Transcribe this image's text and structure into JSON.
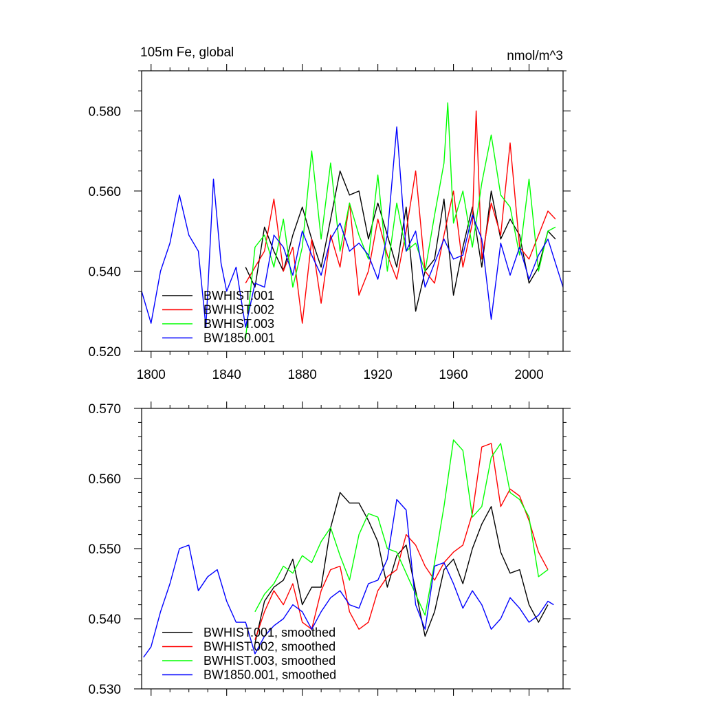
{
  "figure": {
    "top_title": "105m Fe, global",
    "units": "nmol/m^3"
  },
  "chart_data": [
    {
      "type": "line",
      "title": "105m Fe, global",
      "units_label": "nmol/m^3",
      "xlabel": "",
      "ylabel": "",
      "xlim": [
        1795,
        2018
      ],
      "ylim": [
        0.52,
        0.59
      ],
      "x_ticks": [
        1800,
        1840,
        1880,
        1920,
        1960,
        2000
      ],
      "x_tick_labels": [
        "1800",
        "1840",
        "1880",
        "1920",
        "1960",
        "2000"
      ],
      "y_ticks": [
        0.52,
        0.54,
        0.56,
        0.58
      ],
      "y_tick_labels": [
        "0.520",
        "0.540",
        "0.560",
        "0.580"
      ],
      "legend_position": "bottom-left",
      "series": [
        {
          "name": "BWHIST.001",
          "color": "#000000",
          "x": [
            1850,
            1855,
            1860,
            1865,
            1870,
            1875,
            1880,
            1885,
            1890,
            1895,
            1900,
            1905,
            1910,
            1915,
            1920,
            1925,
            1930,
            1935,
            1940,
            1945,
            1950,
            1955,
            1960,
            1965,
            1970,
            1975,
            1980,
            1985,
            1990,
            1995,
            2000,
            2005,
            2010,
            2014
          ],
          "values": [
            0.541,
            0.536,
            0.551,
            0.545,
            0.54,
            0.549,
            0.556,
            0.548,
            0.541,
            0.553,
            0.565,
            0.559,
            0.56,
            0.548,
            0.557,
            0.549,
            0.541,
            0.556,
            0.53,
            0.54,
            0.543,
            0.558,
            0.534,
            0.546,
            0.556,
            0.541,
            0.56,
            0.548,
            0.553,
            0.549,
            0.537,
            0.541,
            0.55,
            0.548
          ]
        },
        {
          "name": "BWHIST.002",
          "color": "#ff0000",
          "x": [
            1850,
            1855,
            1860,
            1865,
            1870,
            1875,
            1880,
            1885,
            1890,
            1895,
            1900,
            1905,
            1910,
            1915,
            1920,
            1925,
            1930,
            1935,
            1940,
            1945,
            1950,
            1955,
            1960,
            1965,
            1970,
            1972,
            1975,
            1980,
            1985,
            1990,
            1995,
            2000,
            2005,
            2010,
            2014
          ],
          "values": [
            0.537,
            0.541,
            0.545,
            0.558,
            0.54,
            0.546,
            0.527,
            0.548,
            0.532,
            0.549,
            0.541,
            0.557,
            0.534,
            0.54,
            0.553,
            0.544,
            0.538,
            0.55,
            0.565,
            0.54,
            0.537,
            0.549,
            0.56,
            0.541,
            0.552,
            0.58,
            0.543,
            0.557,
            0.549,
            0.572,
            0.546,
            0.543,
            0.549,
            0.555,
            0.553
          ]
        },
        {
          "name": "BWHIST.003",
          "color": "#00ff00",
          "x": [
            1850,
            1855,
            1860,
            1865,
            1870,
            1875,
            1880,
            1885,
            1890,
            1895,
            1900,
            1905,
            1910,
            1915,
            1920,
            1925,
            1930,
            1935,
            1940,
            1945,
            1950,
            1955,
            1957,
            1960,
            1965,
            1970,
            1975,
            1980,
            1985,
            1990,
            1995,
            2000,
            2005,
            2010,
            2014
          ],
          "values": [
            0.523,
            0.546,
            0.549,
            0.541,
            0.553,
            0.536,
            0.546,
            0.57,
            0.548,
            0.567,
            0.545,
            0.557,
            0.549,
            0.543,
            0.564,
            0.54,
            0.557,
            0.545,
            0.547,
            0.54,
            0.554,
            0.567,
            0.582,
            0.552,
            0.56,
            0.546,
            0.562,
            0.574,
            0.559,
            0.556,
            0.544,
            0.563,
            0.54,
            0.55,
            0.551
          ]
        },
        {
          "name": "BW1850.001",
          "color": "#0000ff",
          "x": [
            1795,
            1800,
            1805,
            1810,
            1815,
            1820,
            1825,
            1829,
            1833,
            1837,
            1840,
            1845,
            1850,
            1855,
            1860,
            1865,
            1870,
            1875,
            1880,
            1885,
            1890,
            1895,
            1900,
            1905,
            1910,
            1915,
            1920,
            1925,
            1930,
            1935,
            1940,
            1945,
            1950,
            1955,
            1960,
            1965,
            1970,
            1975,
            1980,
            1985,
            1990,
            1995,
            2000,
            2005,
            2010,
            2014,
            2018
          ],
          "values": [
            0.535,
            0.527,
            0.54,
            0.547,
            0.559,
            0.549,
            0.545,
            0.526,
            0.563,
            0.542,
            0.535,
            0.541,
            0.526,
            0.537,
            0.536,
            0.549,
            0.546,
            0.539,
            0.55,
            0.544,
            0.539,
            0.548,
            0.552,
            0.545,
            0.547,
            0.544,
            0.538,
            0.549,
            0.576,
            0.545,
            0.55,
            0.536,
            0.542,
            0.548,
            0.543,
            0.544,
            0.554,
            0.548,
            0.528,
            0.547,
            0.539,
            0.546,
            0.538,
            0.544,
            0.548,
            0.542,
            0.536
          ]
        }
      ]
    },
    {
      "type": "line",
      "title": "",
      "xlabel": "",
      "ylabel": "",
      "xlim": [
        1795,
        2018
      ],
      "ylim": [
        0.53,
        0.57
      ],
      "x_ticks": [
        1800,
        1840,
        1880,
        1920,
        1960,
        2000
      ],
      "y_ticks": [
        0.53,
        0.54,
        0.55,
        0.56,
        0.57
      ],
      "y_tick_labels": [
        "0.530",
        "0.540",
        "0.550",
        "0.560",
        "0.570"
      ],
      "legend_position": "bottom-left",
      "series": [
        {
          "name": "BWHIST.001, smoothed",
          "color": "#000000",
          "x": [
            1855,
            1860,
            1865,
            1870,
            1875,
            1880,
            1885,
            1890,
            1895,
            1900,
            1905,
            1910,
            1915,
            1920,
            1925,
            1930,
            1935,
            1940,
            1945,
            1950,
            1955,
            1960,
            1965,
            1970,
            1975,
            1980,
            1985,
            1990,
            1995,
            2000,
            2005,
            2010
          ],
          "values": [
            0.5365,
            0.5425,
            0.5445,
            0.5455,
            0.5485,
            0.542,
            0.5445,
            0.5445,
            0.553,
            0.558,
            0.5565,
            0.5565,
            0.554,
            0.551,
            0.5445,
            0.549,
            0.5505,
            0.544,
            0.5375,
            0.541,
            0.547,
            0.5485,
            0.545,
            0.55,
            0.5535,
            0.556,
            0.5495,
            0.5465,
            0.547,
            0.542,
            0.5395,
            0.542
          ]
        },
        {
          "name": "BWHIST.002, smoothed",
          "color": "#ff0000",
          "x": [
            1855,
            1860,
            1865,
            1870,
            1875,
            1880,
            1885,
            1890,
            1895,
            1900,
            1905,
            1910,
            1915,
            1920,
            1925,
            1930,
            1935,
            1940,
            1945,
            1950,
            1955,
            1960,
            1965,
            1970,
            1975,
            1980,
            1985,
            1990,
            1995,
            2000,
            2005,
            2010
          ],
          "values": [
            0.537,
            0.541,
            0.544,
            0.542,
            0.545,
            0.5395,
            0.5385,
            0.544,
            0.547,
            0.5475,
            0.541,
            0.5385,
            0.5395,
            0.544,
            0.546,
            0.547,
            0.552,
            0.5505,
            0.5475,
            0.5455,
            0.548,
            0.5495,
            0.5505,
            0.555,
            0.5645,
            0.565,
            0.556,
            0.5585,
            0.5575,
            0.554,
            0.5495,
            0.547
          ]
        },
        {
          "name": "BWHIST.003, smoothed",
          "color": "#00ff00",
          "x": [
            1855,
            1860,
            1865,
            1870,
            1875,
            1880,
            1885,
            1890,
            1895,
            1900,
            1905,
            1910,
            1915,
            1920,
            1925,
            1930,
            1935,
            1940,
            1945,
            1950,
            1955,
            1960,
            1965,
            1970,
            1975,
            1980,
            1985,
            1990,
            1995,
            2000,
            2005,
            2010
          ],
          "values": [
            0.541,
            0.5435,
            0.545,
            0.5475,
            0.5465,
            0.549,
            0.548,
            0.551,
            0.553,
            0.549,
            0.5455,
            0.552,
            0.555,
            0.5545,
            0.55,
            0.5495,
            0.5465,
            0.5435,
            0.5405,
            0.548,
            0.556,
            0.5655,
            0.564,
            0.5545,
            0.556,
            0.563,
            0.565,
            0.558,
            0.557,
            0.5545,
            0.546,
            0.547
          ]
        },
        {
          "name": "BW1850.001, smoothed",
          "color": "#0000ff",
          "x": [
            1796,
            1800,
            1805,
            1810,
            1815,
            1820,
            1825,
            1830,
            1835,
            1840,
            1845,
            1850,
            1855,
            1860,
            1865,
            1870,
            1875,
            1880,
            1885,
            1890,
            1895,
            1900,
            1905,
            1910,
            1915,
            1920,
            1925,
            1930,
            1935,
            1940,
            1945,
            1950,
            1955,
            1960,
            1965,
            1970,
            1975,
            1980,
            1985,
            1990,
            1995,
            2000,
            2005,
            2010,
            2013
          ],
          "values": [
            0.5345,
            0.536,
            0.541,
            0.545,
            0.55,
            0.5505,
            0.544,
            0.546,
            0.547,
            0.5425,
            0.5395,
            0.5395,
            0.535,
            0.5375,
            0.539,
            0.54,
            0.542,
            0.541,
            0.5385,
            0.541,
            0.543,
            0.544,
            0.542,
            0.5415,
            0.545,
            0.5455,
            0.5485,
            0.557,
            0.5555,
            0.542,
            0.5385,
            0.5475,
            0.548,
            0.545,
            0.5415,
            0.544,
            0.542,
            0.5385,
            0.54,
            0.543,
            0.5415,
            0.5395,
            0.5405,
            0.5425,
            0.542
          ]
        }
      ]
    }
  ]
}
